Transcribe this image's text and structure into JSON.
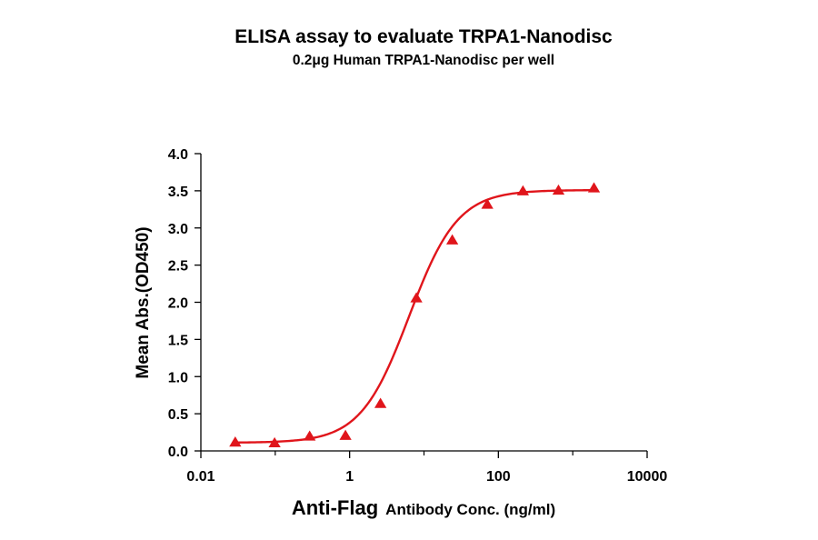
{
  "chart_data": {
    "type": "scatter",
    "title": "ELISA assay to evaluate TRPA1-Nanodisc",
    "subtitle": "0.2μg Human TRPA1-Nanodisc per well",
    "xlabel_main": "Anti-Flag",
    "xlabel_rest": "Antibody Conc. (ng/ml)",
    "ylabel": "Mean Abs.(OD450)",
    "x_scale": "log",
    "xlim": [
      0.01,
      10000
    ],
    "ylim": [
      0,
      4.0
    ],
    "x_ticks": [
      0.01,
      1,
      100,
      10000
    ],
    "x_tick_labels": [
      "0.01",
      "1",
      "100",
      "10000"
    ],
    "y_ticks": [
      0.0,
      0.5,
      1.0,
      1.5,
      2.0,
      2.5,
      3.0,
      3.5,
      4.0
    ],
    "y_tick_labels": [
      "0.0",
      "0.5",
      "1.0",
      "1.5",
      "2.0",
      "2.5",
      "3.0",
      "3.5",
      "4.0"
    ],
    "color": "#e0151b",
    "marker": "triangle",
    "series": [
      {
        "x": [
          0.029,
          0.098,
          0.29,
          0.88,
          2.6,
          7.9,
          24,
          71,
          214,
          643,
          1929
        ],
        "y": [
          0.11,
          0.1,
          0.19,
          0.2,
          0.63,
          2.05,
          2.83,
          3.31,
          3.49,
          3.5,
          3.53
        ]
      }
    ],
    "fit": {
      "type": "4PL",
      "bottom": 0.11,
      "top": 3.51,
      "ec50": 6.3,
      "hill": 1.33
    }
  }
}
